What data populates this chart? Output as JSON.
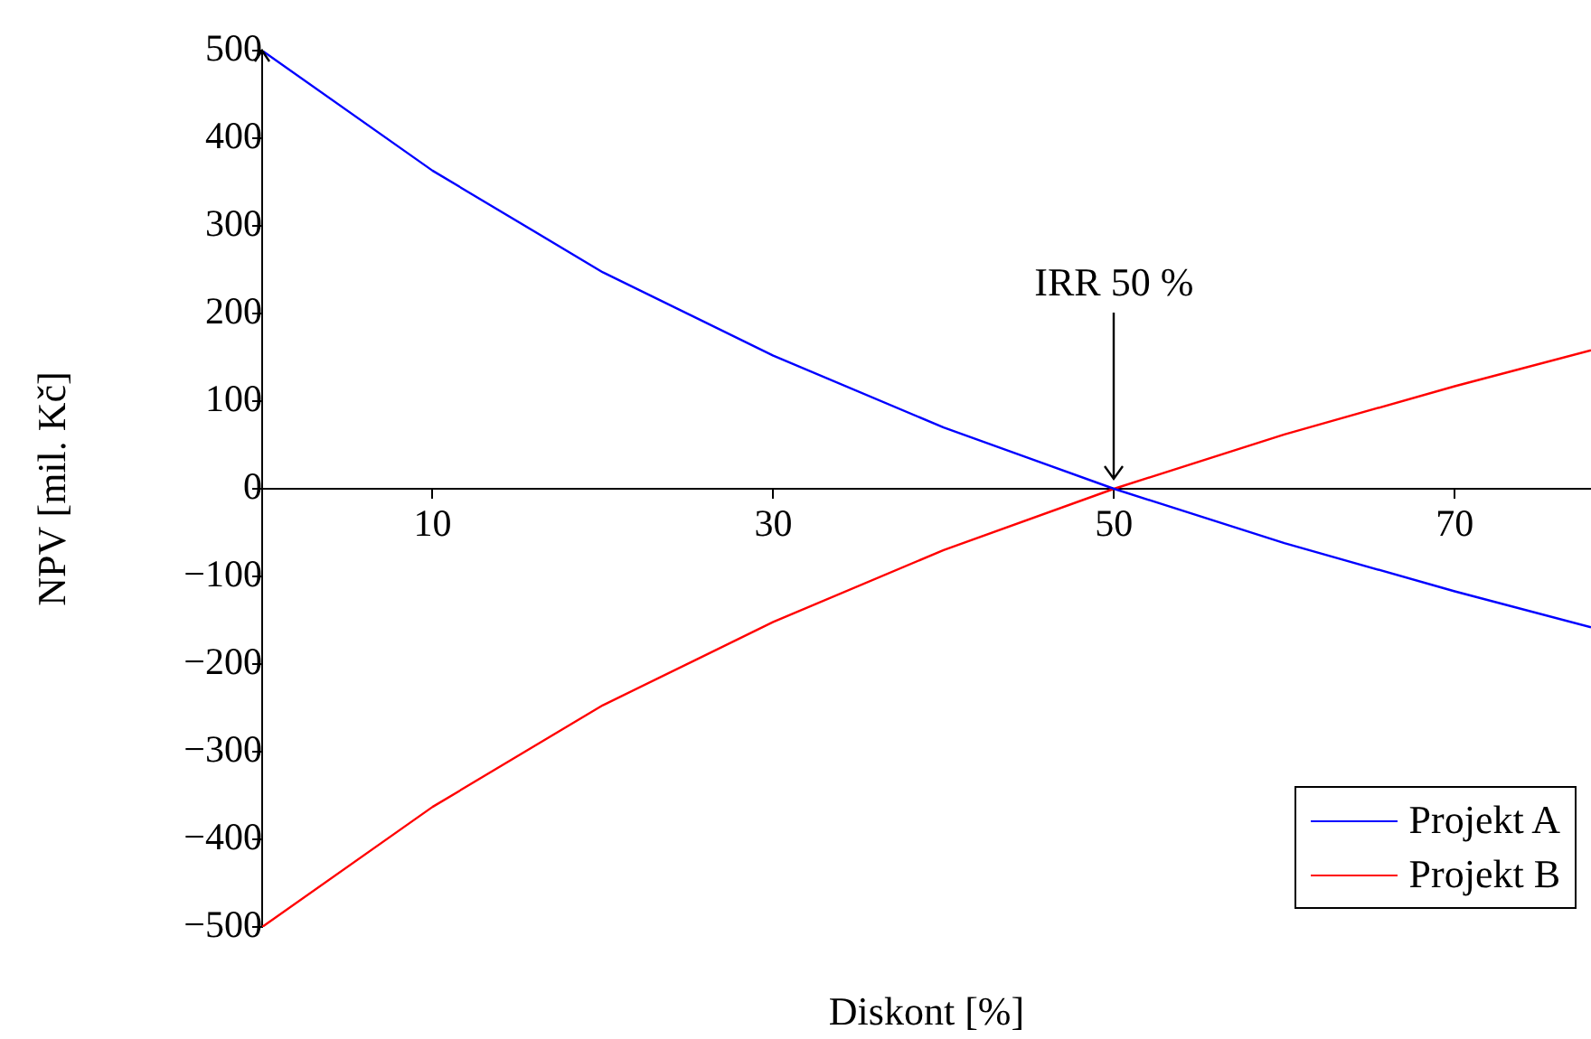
{
  "chart_data": {
    "type": "line",
    "xlabel": "Diskont [%]",
    "ylabel": "NPV [mil. Kč]",
    "xlim": [
      0,
      78
    ],
    "ylim": [
      -500,
      500
    ],
    "xticks": [
      10,
      30,
      50,
      70
    ],
    "yticks": [
      500,
      400,
      300,
      200,
      100,
      0,
      {
        "value": -100,
        "label": "−100"
      },
      {
        "value": -200,
        "label": "−200"
      },
      {
        "value": -300,
        "label": "−300"
      },
      {
        "value": -400,
        "label": "−400"
      },
      {
        "value": -500,
        "label": "−500"
      }
    ],
    "x": [
      0,
      10,
      20,
      30,
      40,
      50,
      60,
      70,
      78
    ],
    "series": [
      {
        "name": "Projekt A",
        "color": "#0000ff",
        "values": [
          500,
          363,
          247,
          152,
          70,
          0,
          -62,
          -117,
          -158
        ]
      },
      {
        "name": "Projekt B",
        "color": "#ff0000",
        "values": [
          -500,
          -363,
          -247,
          -152,
          -70,
          0,
          62,
          117,
          158
        ]
      }
    ],
    "annotations": [
      {
        "text": "IRR 50 %",
        "x": 50,
        "y": 0
      }
    ],
    "legend": "bottom right",
    "grid": false,
    "marker": "none",
    "line_style": "solid"
  }
}
